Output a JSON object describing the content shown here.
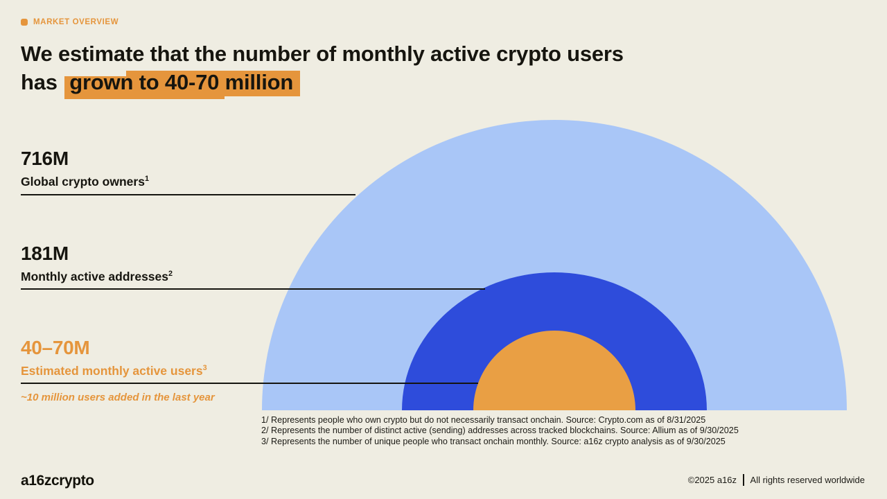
{
  "colors": {
    "background": "#EFEDE2",
    "ink": "#16150F",
    "accent": "#E5953C",
    "circle-outer": "#A9C6F7",
    "circle-mid": "#2E4CDB",
    "circle-inner": "#E99F44"
  },
  "tag": {
    "label": "MARKET OVERVIEW"
  },
  "title": {
    "line1": "We estimate that the number of monthly active crypto users",
    "line2_prefix": "has ",
    "line2_highlight": "grown to 40-70 million"
  },
  "stats": [
    {
      "value": "716M",
      "label": "Global crypto owners",
      "sup": "1"
    },
    {
      "value": "181M",
      "label": "Monthly active addresses",
      "sup": "2"
    },
    {
      "value": "40–70M",
      "label": "Estimated monthly active users",
      "sup": "3",
      "note": "~10 million users added in the last year"
    }
  ],
  "footnotes": [
    "1/ Represents people who own crypto but do not necessarily transact onchain. Source: Crypto.com as of 8/31/2025",
    "2/ Represents the number of distinct active (sending) addresses across tracked blockchains. Source: Allium as of 9/30/2025",
    "3/ Represents the number of unique people who transact onchain monthly. Source: a16z crypto analysis as of 9/30/2025"
  ],
  "footer": {
    "logo": "a16zcrypto",
    "copyright": "©2025 a16z",
    "rights": "All rights reserved worldwide"
  },
  "chart_data": {
    "type": "pie",
    "variant": "nested_proportional_semicircles",
    "title": "We estimate that the number of monthly active crypto users has grown to 40-70 million",
    "units": "millions of people",
    "series": [
      {
        "name": "Global crypto owners",
        "label": "716M",
        "value": 716,
        "color": "#A9C6F7",
        "footnote_ref": "1"
      },
      {
        "name": "Monthly active addresses",
        "label": "181M",
        "value": 181,
        "color": "#2E4CDB",
        "footnote_ref": "2"
      },
      {
        "name": "Estimated monthly active users",
        "label": "40–70M",
        "value_range": [
          40,
          70
        ],
        "color": "#E99F44",
        "footnote_ref": "3"
      }
    ],
    "annotation": "~10 million users added in the last year",
    "legend_position": "left",
    "grid": false
  }
}
